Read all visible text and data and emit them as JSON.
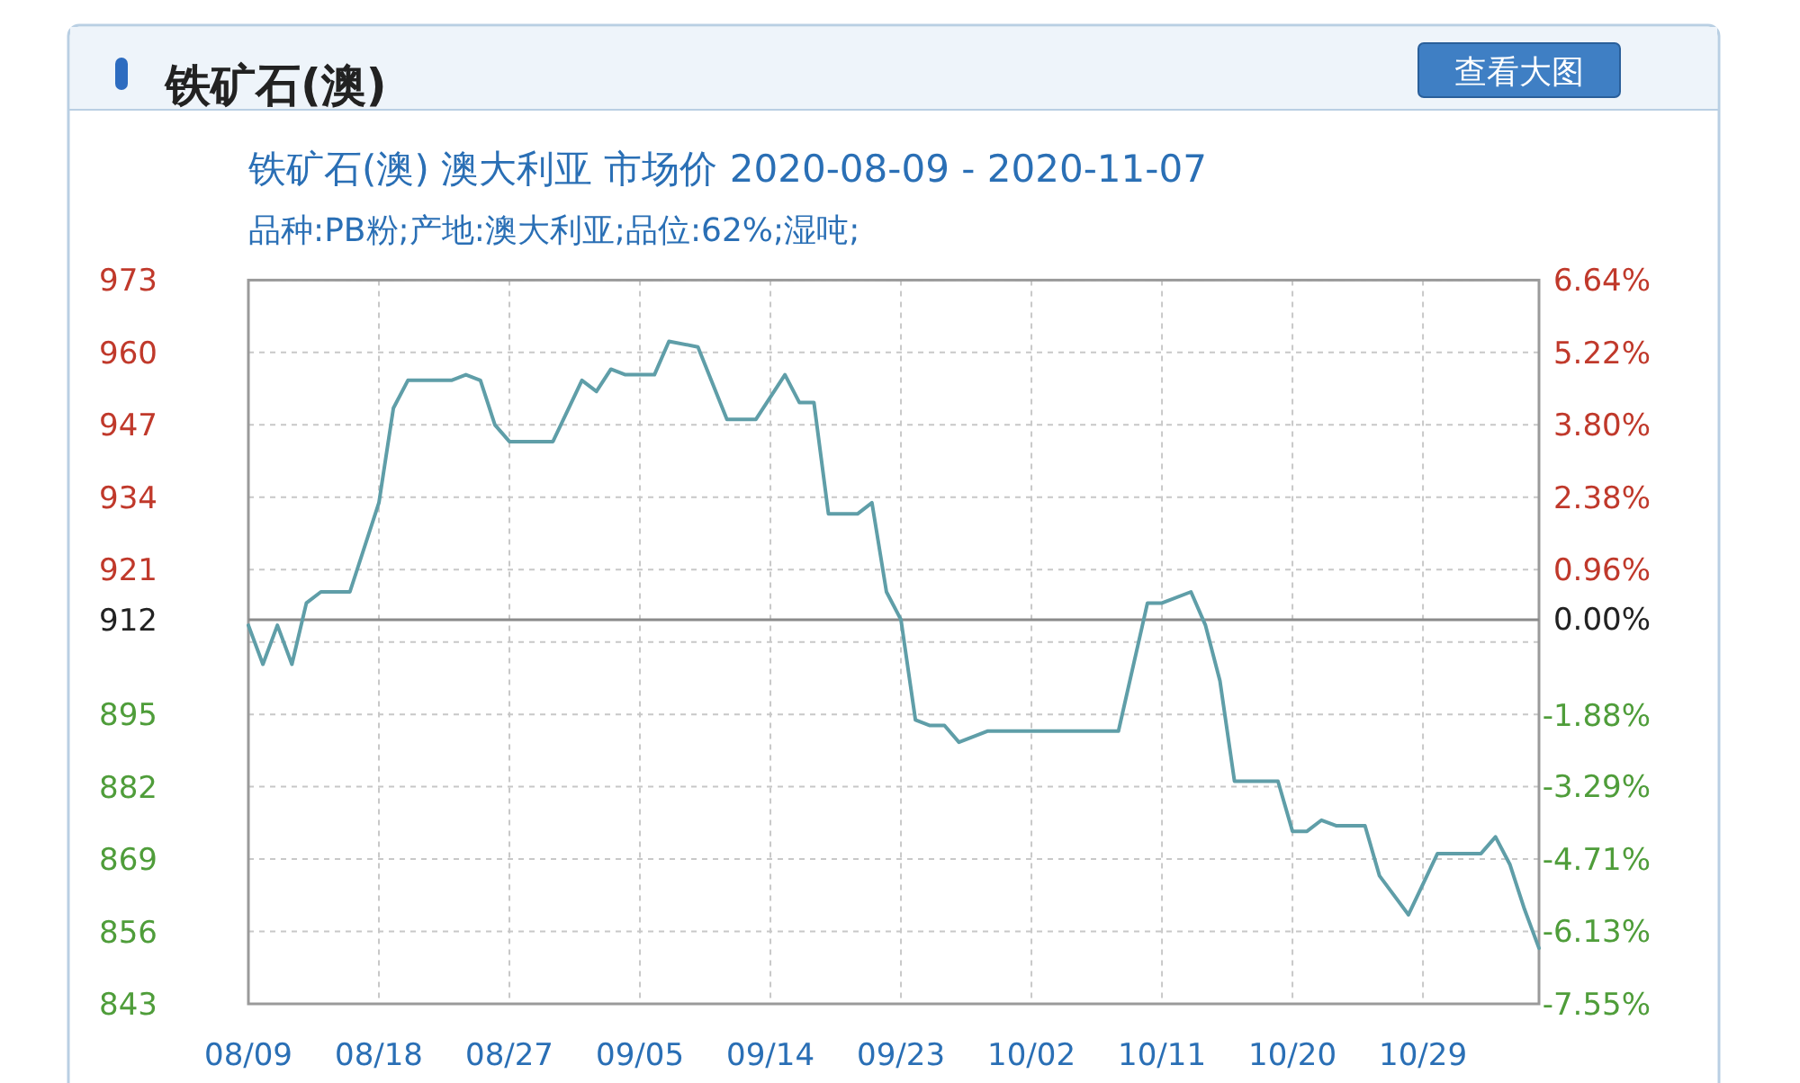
{
  "chart_data": {
    "type": "line",
    "title": "铁矿石(澳)",
    "subtitle": "铁矿石(澳) 澳大利亚 市场价 2020-08-09 - 2020-11-07",
    "annotations": [
      "品种:PB粉;产地:澳大利亚;品位:62%;湿吨;",
      "查看大图"
    ],
    "x": [
      "2020-08-09",
      "2020-08-10",
      "2020-08-11",
      "2020-08-12",
      "2020-08-13",
      "2020-08-14",
      "2020-08-16",
      "2020-08-18",
      "2020-08-19",
      "2020-08-20",
      "2020-08-23",
      "2020-08-24",
      "2020-08-25",
      "2020-08-26",
      "2020-08-27",
      "2020-08-30",
      "2020-09-01",
      "2020-09-02",
      "2020-09-03",
      "2020-09-04",
      "2020-09-06",
      "2020-09-07",
      "2020-09-09",
      "2020-09-11",
      "2020-09-13",
      "2020-09-15",
      "2020-09-16",
      "2020-09-17",
      "2020-09-18",
      "2020-09-20",
      "2020-09-21",
      "2020-09-22",
      "2020-09-23",
      "2020-09-24",
      "2020-09-25",
      "2020-09-26",
      "2020-09-27",
      "2020-09-29",
      "2020-10-08",
      "2020-10-10",
      "2020-10-11",
      "2020-10-13",
      "2020-10-14",
      "2020-10-15",
      "2020-10-16",
      "2020-10-19",
      "2020-10-20",
      "2020-10-21",
      "2020-10-22",
      "2020-10-23",
      "2020-10-25",
      "2020-10-26",
      "2020-10-28",
      "2020-10-30",
      "2020-11-02",
      "2020-11-03",
      "2020-11-04",
      "2020-11-05",
      "2020-11-06"
    ],
    "values": [
      911,
      904,
      911,
      904,
      915,
      917,
      917,
      933,
      950,
      955,
      955,
      956,
      955,
      947,
      944,
      944,
      955,
      953,
      957,
      956,
      956,
      962,
      961,
      948,
      948,
      956,
      951,
      951,
      931,
      931,
      933,
      917,
      912,
      894,
      893,
      893,
      890,
      892,
      892,
      915,
      915,
      917,
      911,
      901,
      883,
      883,
      874,
      874,
      876,
      875,
      875,
      866,
      859,
      870,
      870,
      873,
      868,
      860,
      853
    ],
    "color": "#5f9ea8",
    "xlim": [
      "2020-08-09",
      "2020-11-06"
    ],
    "xticks": [
      {
        "value": "2020-08-09",
        "label": "08/09"
      },
      {
        "value": "2020-08-18",
        "label": "08/18"
      },
      {
        "value": "2020-08-27",
        "label": "08/27"
      },
      {
        "value": "2020-09-05",
        "label": "09/05"
      },
      {
        "value": "2020-09-14",
        "label": "09/14"
      },
      {
        "value": "2020-09-23",
        "label": "09/23"
      },
      {
        "value": "2020-10-02",
        "label": "10/02"
      },
      {
        "value": "2020-10-11",
        "label": "10/11"
      },
      {
        "value": "2020-10-20",
        "label": "10/20"
      },
      {
        "value": "2020-10-29",
        "label": "10/29"
      }
    ],
    "ylim": [
      843,
      973
    ],
    "yticks": [
      843,
      856,
      869,
      882,
      895,
      {
        "value": 908,
        "label": null
      },
      912,
      921,
      934,
      947,
      960,
      973
    ],
    "y2lim": [
      -7.55,
      6.64
    ],
    "y2ticks": [
      {
        "value": -7.55,
        "label": "-7.55%"
      },
      {
        "value": -6.13,
        "label": "-6.13%"
      },
      {
        "value": -4.71,
        "label": "-4.71%"
      },
      {
        "value": -3.29,
        "label": "-3.29%"
      },
      {
        "value": -1.88,
        "label": "-1.88%"
      },
      {
        "value": 0,
        "label": "0.00%"
      },
      {
        "value": 0.96,
        "label": "0.96%"
      },
      {
        "value": 2.38,
        "label": "2.38%"
      },
      {
        "value": 3.8,
        "label": "3.80%"
      },
      {
        "value": 5.22,
        "label": "5.22%"
      },
      {
        "value": 6.64,
        "label": "6.64%"
      }
    ],
    "ref_lines": [
      {
        "axis": "y",
        "value": 912
      }
    ],
    "grid": true
  }
}
